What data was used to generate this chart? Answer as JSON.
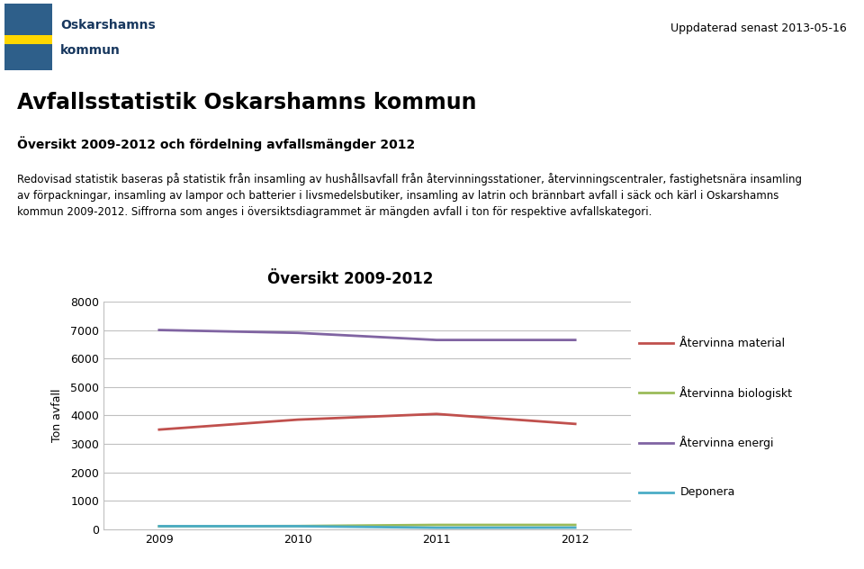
{
  "years": [
    2009,
    2010,
    2011,
    2012
  ],
  "series": {
    "Återvinna material": {
      "values": [
        3500,
        3850,
        4050,
        3700
      ],
      "color": "#C0504D"
    },
    "Återvinna biologiskt": {
      "values": [
        100,
        110,
        150,
        150
      ],
      "color": "#9BBB59"
    },
    "Återvinna energi": {
      "values": [
        7000,
        6900,
        6650,
        6650
      ],
      "color": "#8064A2"
    },
    "Deponera": {
      "values": [
        105,
        105,
        50,
        55
      ],
      "color": "#4BACC6"
    }
  },
  "chart_title": "Översikt 2009-2012",
  "ylabel": "Ton avfall",
  "ylim": [
    0,
    8000
  ],
  "yticks": [
    0,
    1000,
    2000,
    3000,
    4000,
    5000,
    6000,
    7000,
    8000
  ],
  "xlim": [
    2008.6,
    2012.4
  ],
  "page_title": "Avfallsstatistik Oskarshamns kommun",
  "subtitle": "Översikt 2009-2012 och fördelning avfallsmängder 2012",
  "body_line1": "Redovisad statistik baseras på statistik från insamling av hushållsavfall från återvinningsstationer, återvinningscentraler, fastighetsnära insamling",
  "body_line2": "av förpackningar, insamling av lampor och batterier i livsmedelsbutiker, insamling av latrin och brännbart avfall i säck och kärl i Oskarshamns",
  "body_line3": "kommun 2009-2012. Siffrorna som anges i översiktsdiagrammet är mängden avfall i ton för respektive avfallskategori.",
  "update_text": "Uppdaterad senast 2013-05-16",
  "chart_border_color": "#92D050",
  "background_color": "#FFFFFF",
  "chart_bg_color": "#FFFFFF",
  "grid_color": "#C0C0C0",
  "legend_series_order": [
    "Återvinna material",
    "Återvinna biologiskt",
    "Återvinna energi",
    "Deponera"
  ],
  "logo_text1": "Oskarshamns",
  "logo_text2": "kommun",
  "logo_color": "#17375E"
}
